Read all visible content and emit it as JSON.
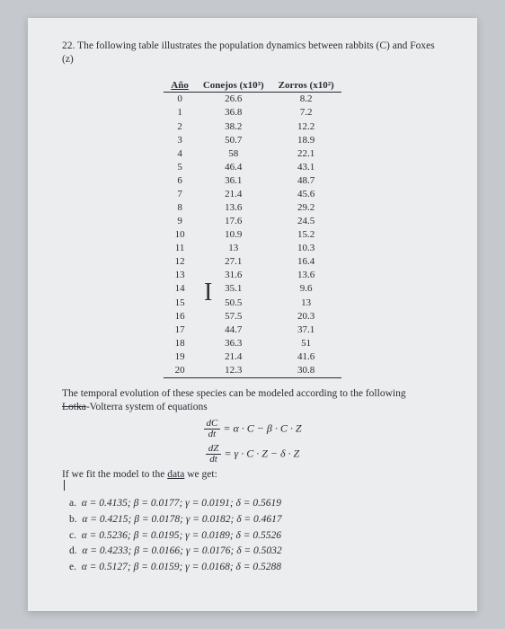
{
  "question_number": "22.",
  "question_text": "The following table illustrates the population dynamics between rabbits (C) and Foxes (z)",
  "table": {
    "headers": [
      "Año",
      "Conejos (x10³)",
      "Zorros (x10²)"
    ],
    "rows": [
      [
        "0",
        "26.6",
        "8.2"
      ],
      [
        "1",
        "36.8",
        "7.2"
      ],
      [
        "2",
        "38.2",
        "12.2"
      ],
      [
        "3",
        "50.7",
        "18.9"
      ],
      [
        "4",
        "58",
        "22.1"
      ],
      [
        "5",
        "46.4",
        "43.1"
      ],
      [
        "6",
        "36.1",
        "48.7"
      ],
      [
        "7",
        "21.4",
        "45.6"
      ],
      [
        "8",
        "13.6",
        "29.2"
      ],
      [
        "9",
        "17.6",
        "24.5"
      ],
      [
        "10",
        "10.9",
        "15.2"
      ],
      [
        "11",
        "13",
        "10.3"
      ],
      [
        "12",
        "27.1",
        "16.4"
      ],
      [
        "13",
        "31.6",
        "13.6"
      ],
      [
        "14",
        "35.1",
        "9.6"
      ],
      [
        "15",
        "50.5",
        "13"
      ],
      [
        "16",
        "57.5",
        "20.3"
      ],
      [
        "17",
        "44.7",
        "37.1"
      ],
      [
        "18",
        "36.3",
        "51"
      ],
      [
        "19",
        "21.4",
        "41.6"
      ],
      [
        "20",
        "12.3",
        "30.8"
      ]
    ]
  },
  "narrative1": "The temporal evolution of these species can be modeled according to the following",
  "narrative2_struck": "Lotka",
  "narrative2_rest": "-Volterra system of equations",
  "fit_prefix": "If we fit the model to the ",
  "fit_underlined": "data",
  "fit_suffix": " we get:",
  "eq1_lhs_top": "dC",
  "eq1_lhs_bot": "dt",
  "eq1_rhs": " = α · C  −  β · C · Z",
  "eq2_lhs_top": "dZ",
  "eq2_lhs_bot": "dt",
  "eq2_rhs": " = γ · C · Z  −  δ · Z",
  "answers": [
    {
      "l": "a.",
      "t": "α = 0.4135;  β = 0.0177;  γ = 0.0191;  δ = 0.5619"
    },
    {
      "l": "b.",
      "t": "α = 0.4215;  β = 0.0178;  γ = 0.0182;  δ = 0.4617"
    },
    {
      "l": "c.",
      "t": "α = 0.5236;  β = 0.0195;  γ = 0.0189;  δ = 0.5526"
    },
    {
      "l": "d.",
      "t": "α = 0.4233;  β = 0.0166;  γ = 0.0176;  δ = 0.5032"
    },
    {
      "l": "e.",
      "t": "α = 0.5127;  β = 0.0159;  γ = 0.0168;  δ = 0.5288"
    }
  ]
}
